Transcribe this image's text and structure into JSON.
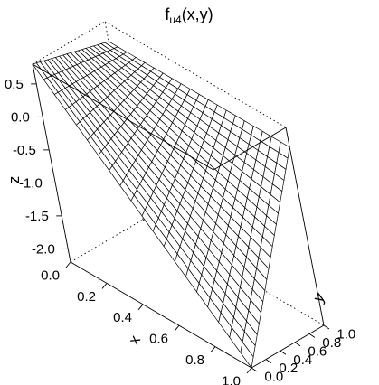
{
  "chart_data": {
    "type": "surface",
    "title": "f",
    "title_subscript": "u4",
    "title_suffix": "(x,y)",
    "xlabel": "x",
    "ylabel": "y",
    "zlabel": "z",
    "xlim": [
      0,
      1
    ],
    "ylim": [
      0,
      1
    ],
    "zlim": [
      -2.2,
      0.8
    ],
    "x_ticks": [
      "0.0",
      "0.2",
      "0.4",
      "0.6",
      "0.8",
      "1.0"
    ],
    "y_ticks": [
      "0.0",
      "0.2",
      "0.4",
      "0.6",
      "0.8",
      "1.0"
    ],
    "z_ticks": [
      "-2.0",
      "-1.5",
      "-1.0",
      "-0.5",
      "0.0",
      "0.5"
    ],
    "grid_resolution": 21,
    "corner_values": {
      "x0_y0": 0.8,
      "x1_y0": -2.2,
      "x0_y1": 0.5,
      "x1_y1": 0.5
    },
    "box": true,
    "colors": {
      "mesh_line": "#000000",
      "mesh_face": "#ffffff"
    }
  }
}
